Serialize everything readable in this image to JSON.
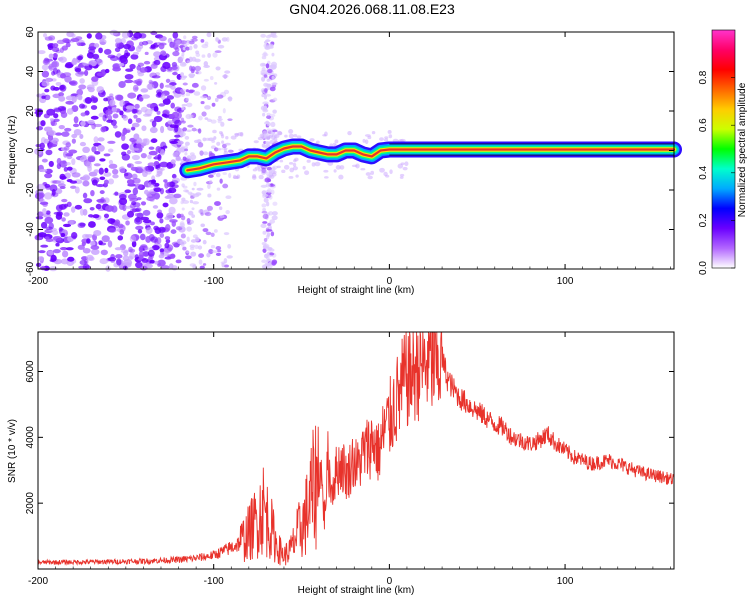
{
  "title": "GN04.2026.068.11.08.E23",
  "colors": {
    "snr_line": "#e8322b",
    "axis": "#000000",
    "background": "#ffffff",
    "ridge_core": "#e8322b"
  },
  "chart_data": [
    {
      "type": "heatmap",
      "name": "spectrogram",
      "xlabel": "Height of straight line (km)",
      "ylabel": "Frequency (Hz)",
      "xlim": [
        -200,
        162
      ],
      "ylim": [
        -60,
        60
      ],
      "xticks": [
        -200,
        -100,
        0,
        100
      ],
      "yticks": [
        -60,
        -40,
        -20,
        0,
        20,
        40,
        60
      ],
      "grid": false,
      "noise_region_x": [
        -200,
        -118
      ],
      "sparse_noise_x": [
        -118,
        -90
      ],
      "noise_band_x": [
        -72,
        -65
      ],
      "ridge": {
        "x": [
          -115,
          -108,
          -100,
          -92,
          -85,
          -80,
          -75,
          -70,
          -65,
          -60,
          -55,
          -50,
          -45,
          -40,
          -35,
          -30,
          -25,
          -20,
          -15,
          -10,
          -5,
          0,
          10,
          20,
          40,
          60,
          80,
          100,
          120,
          140,
          162
        ],
        "y": [
          -10,
          -9,
          -7,
          -6,
          -5,
          -3,
          -3,
          -4,
          -1,
          1,
          2,
          2,
          0,
          -1,
          -2,
          -2,
          0,
          0,
          -2,
          -3,
          0,
          0.5,
          0.5,
          0.5,
          0.5,
          0.5,
          0.5,
          0.5,
          0.5,
          0.5,
          0.5
        ]
      },
      "colorbar": {
        "label": "Normalized spectral amplitude",
        "range": [
          0,
          1
        ],
        "ticks": [
          "0.0",
          "0.2",
          "0.4",
          "0.6",
          "0.8"
        ],
        "colors": [
          "#ffffff",
          "#b266ff",
          "#6a00ff",
          "#0000ff",
          "#00aaff",
          "#00ffcc",
          "#00ff00",
          "#ccff00",
          "#ffcc00",
          "#ff6600",
          "#ff0000",
          "#ff0066",
          "#ff33cc"
        ]
      }
    },
    {
      "type": "line",
      "name": "snr",
      "xlabel": "Height of straight line (km)",
      "ylabel": "SNR (10 * v/v)",
      "xlim": [
        -200,
        162
      ],
      "ylim": [
        0,
        7200
      ],
      "xticks": [
        -200,
        -100,
        0,
        100
      ],
      "yticks": [
        2000,
        4000,
        6000
      ],
      "grid": false,
      "series": [
        {
          "name": "SNR",
          "x": [
            -200,
            -180,
            -160,
            -140,
            -120,
            -110,
            -100,
            -92,
            -85,
            -80,
            -75,
            -72,
            -70,
            -67,
            -64,
            -60,
            -56,
            -52,
            -48,
            -45,
            -42,
            -39,
            -37,
            -35,
            -33,
            -30,
            -27,
            -24,
            -21,
            -18,
            -15,
            -12,
            -9,
            -6,
            -3,
            0,
            3,
            6,
            9,
            12,
            15,
            18,
            20,
            22,
            25,
            28,
            30,
            33,
            36,
            40,
            45,
            50,
            55,
            60,
            65,
            70,
            75,
            80,
            85,
            90,
            95,
            100,
            105,
            110,
            115,
            120,
            125,
            130,
            135,
            140,
            145,
            150,
            155,
            162
          ],
          "y": [
            200,
            210,
            220,
            240,
            280,
            330,
            420,
            600,
            800,
            1100,
            1500,
            1900,
            1600,
            1200,
            700,
            400,
            600,
            1100,
            1500,
            2100,
            2600,
            3100,
            1500,
            3300,
            2400,
            3000,
            3200,
            2800,
            3300,
            3100,
            3500,
            3700,
            3900,
            3500,
            4200,
            4500,
            5000,
            5300,
            5800,
            5900,
            6100,
            6300,
            6100,
            6400,
            6200,
            6200,
            6400,
            5800,
            5500,
            5200,
            5000,
            4800,
            4600,
            4400,
            4300,
            4000,
            3900,
            3800,
            3900,
            4100,
            3800,
            3600,
            3400,
            3300,
            3200,
            3250,
            3300,
            3200,
            3100,
            3000,
            2900,
            2850,
            2800,
            2700
          ]
        }
      ]
    }
  ]
}
